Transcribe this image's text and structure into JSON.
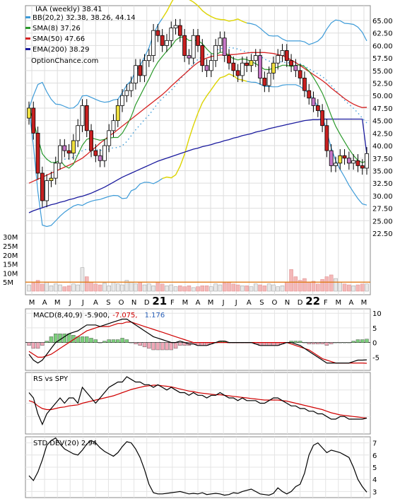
{
  "chart_data": {
    "type": "line",
    "title": "IAA (weekly) 38.41",
    "watermark": "OptionChance.com",
    "price_axis": {
      "ylim": [
        22.5,
        65.0
      ],
      "ticks": [
        "65.00",
        "62.50",
        "60.00",
        "57.50",
        "55.00",
        "52.50",
        "50.00",
        "47.50",
        "45.00",
        "42.50",
        "40.00",
        "37.50",
        "35.00",
        "32.50",
        "30.00",
        "27.50",
        "25.00",
        "22.50"
      ]
    },
    "volume_axis": {
      "ylim": [
        0,
        32
      ],
      "ticks": [
        "30M",
        "25M",
        "20M",
        "15M",
        "10M",
        "5M"
      ]
    },
    "x_axis": {
      "months": [
        "M",
        "A",
        "M",
        "J",
        "J",
        "A",
        "S",
        "O",
        "N",
        "D",
        "21",
        "F",
        "M",
        "A",
        "M",
        "J",
        "J",
        "A",
        "S",
        "O",
        "N",
        "D",
        "22",
        "F",
        "M",
        "A",
        "M"
      ]
    },
    "colors": {
      "bb": "#3d9bd8",
      "sma8": "#2b9a2b",
      "sma50": "#d62222",
      "ema200": "#1a1a9e",
      "bb_fill": "#ffff00",
      "vol_avg": "#e07a16",
      "macd_label_red": "#d00000",
      "macd_label_blue": "#2a60b8"
    },
    "legend": [
      {
        "label": "BB(20,2) 32.38, 38.26, 44.14",
        "color": "#3d9bd8"
      },
      {
        "label": "SMA(8) 37.26",
        "color": "#2b9a2b"
      },
      {
        "label": "SMA(50) 47.66",
        "color": "#d62222"
      },
      {
        "label": "EMA(200) 38.29",
        "color": "#1a1a9e"
      }
    ],
    "series": {
      "close": [
        47.5,
        42.5,
        34.5,
        29.0,
        33.0,
        33.5,
        36.5,
        40.0,
        39.0,
        38.5,
        41.0,
        44.0,
        48.0,
        43.0,
        39.0,
        38.0,
        37.0,
        40.0,
        43.0,
        45.0,
        48.0,
        50.0,
        51.0,
        52.5,
        56.0,
        54.0,
        57.0,
        58.0,
        63.0,
        62.0,
        60.0,
        61.0,
        63.5,
        64.0,
        62.0,
        58.0,
        57.5,
        62.0,
        60.0,
        56.0,
        55.0,
        57.0,
        60.0,
        61.5,
        58.0,
        56.5,
        55.0,
        54.0,
        56.5,
        56.0,
        57.0,
        58.0,
        53.5,
        52.0,
        54.5,
        56.5,
        58.0,
        59.0,
        57.0,
        56.0,
        55.0,
        53.5,
        51.0,
        49.5,
        48.0,
        47.0,
        44.0,
        39.0,
        36.0,
        36.5,
        38.0,
        37.5,
        36.5,
        37.0,
        36.0,
        35.5,
        38.41
      ],
      "sma50": [
        32.5,
        32.9,
        33.3,
        33.7,
        34.1,
        34.5,
        34.9,
        35.3,
        35.7,
        36.1,
        36.5,
        37.0,
        37.5,
        38.2,
        39.0,
        39.7,
        40.5,
        41.2,
        41.9,
        42.5,
        43.2,
        43.9,
        44.6,
        45.3,
        46.0,
        46.7,
        47.4,
        48.1,
        48.8,
        49.5,
        50.2,
        51.0,
        51.9,
        52.7,
        53.5,
        54.3,
        55.1,
        55.9,
        56.6,
        57.1,
        57.5,
        57.8,
        58.0,
        58.1,
        58.1,
        58.2,
        58.2,
        58.3,
        58.4,
        58.5,
        58.6,
        58.6,
        58.6,
        58.6,
        58.5,
        58.4,
        58.2,
        58.0,
        57.6,
        57.1,
        56.6,
        56.0,
        55.4,
        54.8,
        54.2,
        53.6,
        53.0,
        52.3,
        51.5,
        50.8,
        50.1,
        49.4,
        48.8,
        48.3,
        47.9,
        47.6,
        47.66
      ],
      "ema200": [
        26.6,
        27.0,
        27.3,
        27.6,
        27.9,
        28.2,
        28.4,
        28.7,
        28.9,
        29.2,
        29.4,
        29.7,
        29.9,
        30.2,
        30.5,
        30.9,
        31.3,
        31.7,
        32.2,
        32.7,
        33.2,
        33.7,
        34.1,
        34.5,
        34.9,
        35.3,
        35.7,
        36.1,
        36.5,
        36.9,
        37.2,
        37.5,
        37.8,
        38.1,
        38.4,
        38.7,
        39.0,
        39.3,
        39.5,
        39.8,
        40.0,
        40.2,
        40.5,
        40.7,
        41.0,
        41.2,
        41.5,
        41.7,
        42.0,
        42.2,
        42.4,
        42.7,
        42.9,
        43.1,
        43.4,
        43.6,
        43.8,
        44.0,
        44.2,
        44.4,
        44.6,
        44.8,
        45.0,
        45.1,
        45.2,
        45.2,
        45.3,
        45.3,
        45.3,
        45.3,
        45.3,
        45.3,
        45.3,
        45.3,
        45.3,
        45.3,
        38.29
      ],
      "volume": [
        3.5,
        4.5,
        6.0,
        4.0,
        5.0,
        3.0,
        4.0,
        3.5,
        2.5,
        3.0,
        4.0,
        3.5,
        13.0,
        8.0,
        5.0,
        4.0,
        3.5,
        4.5,
        3.0,
        5.0,
        4.0,
        3.5,
        6.0,
        5.0,
        4.0,
        5.0,
        3.5,
        4.0,
        3.0,
        5.0,
        4.0,
        3.0,
        3.5,
        2.5,
        3.0,
        2.5,
        3.0,
        2.0,
        2.5,
        3.0,
        3.0,
        2.5,
        4.0,
        3.5,
        4.5,
        5.0,
        4.0,
        3.5,
        3.0,
        3.0,
        2.5,
        4.0,
        3.5,
        3.0,
        4.0,
        3.5,
        2.5,
        3.0,
        5.0,
        12.0,
        8.0,
        6.0,
        7.0,
        5.0,
        5.5,
        4.0,
        6.5,
        8.0,
        9.0,
        7.0,
        5.0,
        4.0,
        3.5,
        3.0,
        3.5,
        4.0,
        4.0
      ],
      "volume_avg": 5.0
    },
    "macd": {
      "label": "MACD(8,40,9) -5.900,",
      "signal_label": "-7.075,",
      "hist_label": "1.176",
      "ticks": [
        "10",
        "5",
        "0",
        "-5"
      ],
      "ylim": [
        -9.5,
        11.5
      ],
      "macd": [
        -4,
        -6,
        -7,
        -6,
        -4,
        -2,
        0,
        1,
        2,
        3,
        3.5,
        4,
        5,
        6,
        6,
        6,
        5.5,
        6,
        6.5,
        7,
        7.5,
        8,
        8,
        7,
        6,
        5,
        4,
        3,
        2,
        1.5,
        1,
        0.5,
        0,
        0,
        0.5,
        0,
        -0.5,
        -0.5,
        -1,
        -1,
        -1,
        -0.5,
        0,
        0.5,
        0.5,
        0,
        0,
        0,
        0,
        0,
        0,
        -0.5,
        -1,
        -1,
        -1,
        -1,
        -1,
        -0.5,
        0,
        0,
        -0.5,
        -1,
        -2,
        -3,
        -4,
        -5,
        -6,
        -7,
        -7,
        -7,
        -7,
        -7,
        -7,
        -6.5,
        -6,
        -6,
        -5.9
      ],
      "signal": [
        -3,
        -4,
        -5,
        -5,
        -4.5,
        -4,
        -3,
        -2,
        -1,
        0,
        1,
        2,
        3,
        4,
        4.5,
        5,
        5.5,
        5.5,
        5.5,
        6,
        6.5,
        6.5,
        7,
        7,
        6.5,
        6,
        5.5,
        5,
        4.5,
        4,
        3.5,
        3,
        2.5,
        2,
        1.5,
        1,
        0.5,
        0,
        0,
        0,
        0,
        0,
        0,
        0,
        0,
        0,
        0,
        0,
        0,
        0,
        0,
        0,
        0,
        0,
        0,
        0,
        0,
        0,
        0,
        -0.5,
        -1,
        -1.5,
        -2,
        -2.5,
        -3.5,
        -4.5,
        -5.5,
        -6,
        -6.5,
        -7,
        -7,
        -7,
        -7,
        -7,
        -7,
        -7,
        -7.075
      ]
    },
    "rs": {
      "label": "RS vs SPY",
      "line": [
        0.7,
        0.6,
        0.3,
        0.1,
        0.3,
        0.4,
        0.5,
        0.6,
        0.5,
        0.6,
        0.6,
        0.5,
        0.8,
        0.7,
        0.6,
        0.5,
        0.6,
        0.7,
        0.8,
        0.85,
        0.9,
        0.9,
        1.0,
        0.95,
        0.9,
        0.9,
        0.85,
        0.85,
        0.8,
        0.85,
        0.8,
        0.75,
        0.8,
        0.75,
        0.7,
        0.7,
        0.65,
        0.7,
        0.65,
        0.65,
        0.6,
        0.65,
        0.65,
        0.7,
        0.65,
        0.6,
        0.6,
        0.55,
        0.6,
        0.55,
        0.55,
        0.55,
        0.5,
        0.5,
        0.55,
        0.6,
        0.6,
        0.55,
        0.5,
        0.45,
        0.45,
        0.4,
        0.4,
        0.35,
        0.35,
        0.3,
        0.3,
        0.25,
        0.2,
        0.2,
        0.25,
        0.25,
        0.2,
        0.2,
        0.2,
        0.2,
        0.22
      ],
      "avg": [
        0.55,
        0.52,
        0.45,
        0.4,
        0.38,
        0.38,
        0.4,
        0.42,
        0.43,
        0.45,
        0.46,
        0.47,
        0.5,
        0.52,
        0.54,
        0.56,
        0.58,
        0.6,
        0.62,
        0.64,
        0.67,
        0.7,
        0.73,
        0.76,
        0.78,
        0.8,
        0.82,
        0.83,
        0.84,
        0.84,
        0.83,
        0.82,
        0.81,
        0.79,
        0.77,
        0.75,
        0.73,
        0.72,
        0.7,
        0.69,
        0.68,
        0.67,
        0.66,
        0.66,
        0.65,
        0.64,
        0.63,
        0.62,
        0.61,
        0.6,
        0.59,
        0.58,
        0.57,
        0.56,
        0.56,
        0.56,
        0.56,
        0.55,
        0.54,
        0.52,
        0.5,
        0.48,
        0.46,
        0.44,
        0.42,
        0.4,
        0.38,
        0.35,
        0.32,
        0.3,
        0.28,
        0.27,
        0.26,
        0.25,
        0.24,
        0.23,
        0.22
      ]
    },
    "std": {
      "label": "STD DEV(20) 2.94",
      "ticks": [
        "7",
        "6",
        "5",
        "4",
        "3"
      ],
      "ylim": [
        2.5,
        7.5
      ],
      "values": [
        4.3,
        3.9,
        4.6,
        5.6,
        6.8,
        7.2,
        7.4,
        6.9,
        6.5,
        6.3,
        6.1,
        6.0,
        6.4,
        6.9,
        7.2,
        7.0,
        6.6,
        6.3,
        6.1,
        5.9,
        6.2,
        6.7,
        7.1,
        7.0,
        6.5,
        5.8,
        4.8,
        3.6,
        2.9,
        2.8,
        2.8,
        2.85,
        2.9,
        2.95,
        3.0,
        2.9,
        2.8,
        2.85,
        2.8,
        2.9,
        2.75,
        2.8,
        2.85,
        2.8,
        2.7,
        2.75,
        2.9,
        2.85,
        3.0,
        3.1,
        3.2,
        3.0,
        2.8,
        2.75,
        2.7,
        2.85,
        3.3,
        3.0,
        2.8,
        3.0,
        3.4,
        3.6,
        4.5,
        6.0,
        6.8,
        7.0,
        6.6,
        6.2,
        6.4,
        6.3,
        6.2,
        6.0,
        5.8,
        5.0,
        4.0,
        3.4,
        2.94
      ]
    }
  }
}
